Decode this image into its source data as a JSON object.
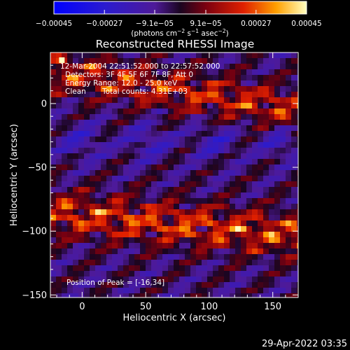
{
  "chart_data": {
    "type": "heatmap",
    "title": "Reconstructed RHESSI Image",
    "xlabel": "Heliocentric X (arcsec)",
    "ylabel": "Heliocentric Y (arcsec)",
    "xlim": [
      -25,
      170
    ],
    "ylim": [
      -152,
      40
    ],
    "x_ticks": [
      0,
      50,
      100,
      150
    ],
    "y_ticks": [
      0,
      -50,
      -100,
      -150
    ],
    "x_tick_labels": [
      "0",
      "50",
      "100",
      "150"
    ],
    "y_tick_labels": [
      "0",
      "−50",
      "−100",
      "−150"
    ],
    "colorbar": {
      "range": [
        -0.00045,
        0.00045
      ],
      "tick_values": [
        -0.00045,
        -0.00027,
        -9.1e-05,
        9.1e-05,
        0.00027,
        0.00045
      ],
      "tick_labels": [
        "−0.00045",
        "−0.00027",
        "−9.1e−05",
        "9.1e−05",
        "0.00027",
        "0.00045"
      ],
      "units_text": "(photons cm",
      "units_sup1": "−2",
      "units_mid": " s",
      "units_sup2": "−1",
      "units_mid2": " asec",
      "units_sup3": "−2",
      "units_end": ")"
    },
    "peak_position": [
      -16,
      34
    ],
    "bands": [
      {
        "center_y": 22,
        "slope": -0.16,
        "amplitude": 0.00038,
        "width": 16
      },
      {
        "center_y": -88,
        "slope": -0.09,
        "amplitude": 0.00042,
        "width": 17
      }
    ],
    "background_level": -5e-05,
    "grid": false
  },
  "annotations": {
    "line1": "12-Mar-2004 22:51:52.000 to 22:57:52.000",
    "line2": "Detectors: 3F 4F 5F 6F 7F 8F, Att 0",
    "line3": "Energy Range: 12.0 - 25.0 keV",
    "line4_a": "Clean",
    "line4_b": "Total counts: 4.31E+03",
    "peak": "Position of Peak = [-16,34]"
  },
  "footer": {
    "timestamp": "29-Apr-2022 03:35"
  },
  "colors": {
    "background": "#000000",
    "foreground": "#ffffff"
  }
}
